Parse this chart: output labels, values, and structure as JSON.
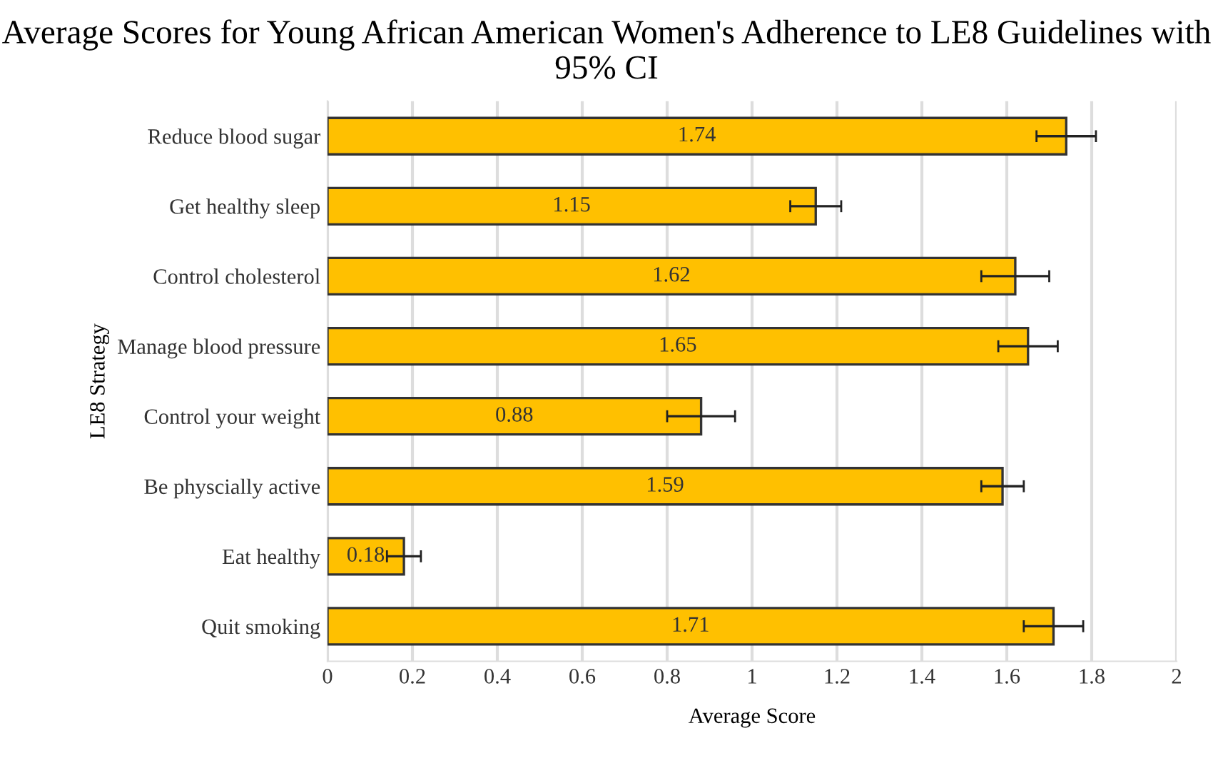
{
  "chart_data": {
    "type": "bar",
    "orientation": "horizontal",
    "title": "Average Scores for Young African American Women's Adherence to LE8 Guidelines with 95% CI",
    "xlabel": "Average Score",
    "ylabel": "LE8 Strategy",
    "categories": [
      "Reduce blood sugar",
      "Get healthy sleep",
      "Control cholesterol",
      "Manage blood pressure",
      "Control your weight",
      "Be physcially active",
      "Eat healthy",
      "Quit smoking"
    ],
    "values": [
      1.74,
      1.15,
      1.62,
      1.65,
      0.88,
      1.59,
      0.18,
      1.71
    ],
    "errors": [
      0.07,
      0.06,
      0.08,
      0.07,
      0.08,
      0.05,
      0.04,
      0.07
    ],
    "color": "#ffc000",
    "data_labels": true,
    "grid": "x",
    "xlim": [
      0,
      2
    ],
    "xticks": [
      0,
      0.2,
      0.4,
      0.6,
      0.8,
      1,
      1.2,
      1.4,
      1.6,
      1.8,
      2
    ]
  }
}
